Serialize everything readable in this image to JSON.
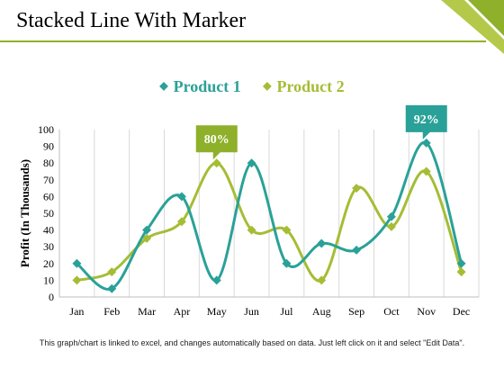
{
  "slide": {
    "title": "Stacked Line With Marker",
    "footnote": "This graph/chart is linked to excel, and changes automatically based on data. Just left click on it and select \"Edit Data\".",
    "colors": {
      "accent_dark": "#8fb02a",
      "accent_light": "#b4c94a"
    }
  },
  "chart_data": {
    "type": "line",
    "ylabel": "Profit (In Thousands)",
    "xlabel": "",
    "ylim": [
      0,
      100
    ],
    "yticks": [
      0,
      10,
      20,
      30,
      40,
      50,
      60,
      70,
      80,
      90,
      100
    ],
    "categories": [
      "Jan",
      "Feb",
      "Mar",
      "Apr",
      "May",
      "Jun",
      "Jul",
      "Aug",
      "Sep",
      "Oct",
      "Nov",
      "Dec"
    ],
    "grid": "vertical",
    "smooth": true,
    "legend_position": "top-center",
    "series": [
      {
        "name": "Product 1",
        "color": "#2aa198",
        "values": [
          20,
          5,
          40,
          60,
          10,
          80,
          20,
          32,
          28,
          48,
          92,
          20
        ]
      },
      {
        "name": "Product 2",
        "color": "#a5bd35",
        "values": [
          10,
          15,
          35,
          45,
          80,
          40,
          40,
          10,
          65,
          42,
          75,
          15
        ]
      }
    ],
    "annotations": [
      {
        "text": "80%",
        "series": 1,
        "category": "May",
        "color": "#8fb02a"
      },
      {
        "text": "92%",
        "series": 0,
        "category": "Nov",
        "color": "#2aa198"
      }
    ]
  }
}
